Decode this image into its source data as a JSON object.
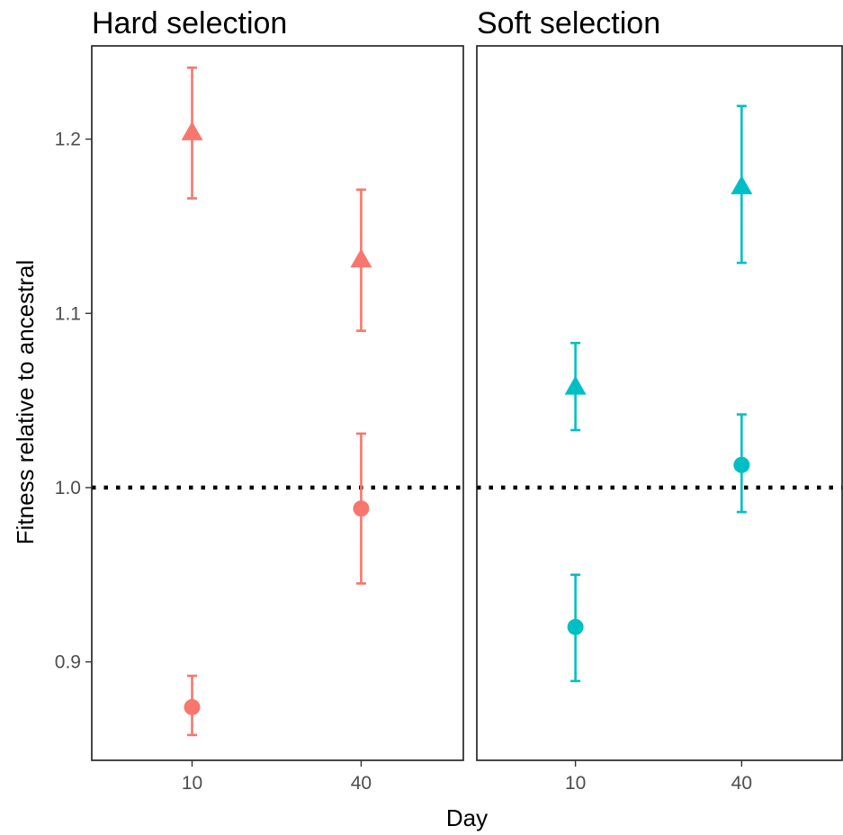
{
  "chart_data": {
    "type": "scatter",
    "x_label": "Day",
    "y_label": "Fitness relative to ancestral",
    "x_categories": [
      "10",
      "40"
    ],
    "y_ticks": [
      0.9,
      1.0,
      1.1,
      1.2
    ],
    "y_tick_labels": [
      "0.9",
      "1.0",
      "1.1",
      "1.2"
    ],
    "ylim": [
      0.8435,
      1.2535
    ],
    "reference_line": {
      "y": 1.0,
      "style": "dotted",
      "color": "#000000"
    },
    "grid": false,
    "panels": [
      {
        "title": "Hard selection",
        "color": "#F8766D",
        "points": [
          {
            "x": "10",
            "shape": "triangle",
            "y": 1.204,
            "ymin": 1.166,
            "ymax": 1.241
          },
          {
            "x": "40",
            "shape": "triangle",
            "y": 1.131,
            "ymin": 1.09,
            "ymax": 1.171
          },
          {
            "x": "10",
            "shape": "circle",
            "y": 0.874,
            "ymin": 0.858,
            "ymax": 0.892
          },
          {
            "x": "40",
            "shape": "circle",
            "y": 0.988,
            "ymin": 0.945,
            "ymax": 1.031
          }
        ]
      },
      {
        "title": "Soft selection",
        "color": "#00BFC4",
        "points": [
          {
            "x": "10",
            "shape": "triangle",
            "y": 1.058,
            "ymin": 1.033,
            "ymax": 1.083
          },
          {
            "x": "40",
            "shape": "triangle",
            "y": 1.173,
            "ymin": 1.129,
            "ymax": 1.219
          },
          {
            "x": "10",
            "shape": "circle",
            "y": 0.92,
            "ymin": 0.889,
            "ymax": 0.95
          },
          {
            "x": "40",
            "shape": "circle",
            "y": 1.013,
            "ymin": 0.986,
            "ymax": 1.042
          }
        ]
      }
    ]
  }
}
